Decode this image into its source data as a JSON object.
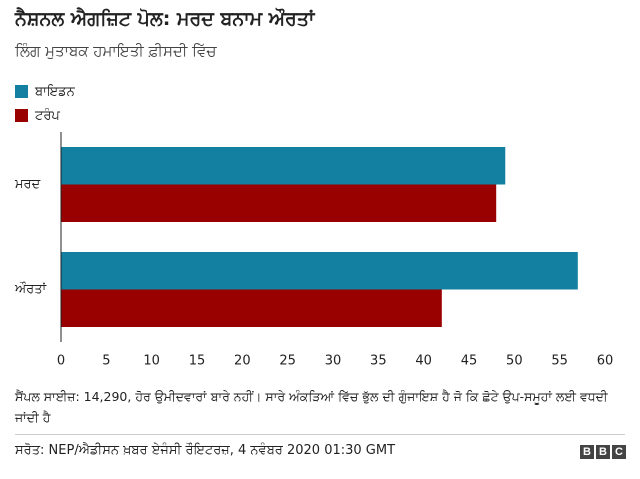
{
  "chart_data": {
    "type": "barh",
    "title": "ਨੈਸ਼ਨਲ ਐਗਜ਼ਿਟ ਪੋਲ: ਮਰਦ ਬਨਾਮ ਔਰਤਾਂ",
    "subtitle": "ਲਿੰਗ ਮੁਤਾਬਕ ਹਮਾਇਤੀ ਫ਼ੀਸਦੀ ਵਿੱਚ",
    "categories": [
      "ਮਰਦ",
      "ਔਰਤਾਂ"
    ],
    "series": [
      {
        "name": "ਬਾਇਡਨ",
        "color": "#1380a1",
        "values": [
          49,
          57
        ]
      },
      {
        "name": "ਟਰੰਪ",
        "color": "#990000",
        "values": [
          48,
          42
        ]
      }
    ],
    "xlim": [
      0,
      60
    ],
    "xticks": [
      0,
      5,
      10,
      15,
      20,
      25,
      30,
      35,
      40,
      45,
      50,
      55,
      60
    ],
    "grid": false,
    "legend": "top-left",
    "note": "ਸੈਂਪਲ ਸਾਈਜ਼: 14,290, ਹੋਰ ਉਮੀਦਵਾਰਾਂ ਬਾਰੇ ਨਹੀਂ। ਸਾਰੇ ਅੰਕੜਿਆਂ ਵਿੱਚ ਭੁੱਲ ਦੀ ਗੁੰਜਾਇਸ਼ ਹੈ ਜੋ ਕਿ ਛੋਟੇ ਉਪ-ਸਮੂਹਾਂ ਲਈ ਵਧਦੀ ਜਾਂਦੀ ਹੈ",
    "source": "ਸਰੋਤ: NEP/ਐਡੀਸਨ ਖ਼ਬਰ ਏਜੰਸੀ ਰੌਇਟਰਜ਼, 4 ਨਵੰਬਰ 2020 01:30 GMT",
    "logo": "BBC"
  }
}
